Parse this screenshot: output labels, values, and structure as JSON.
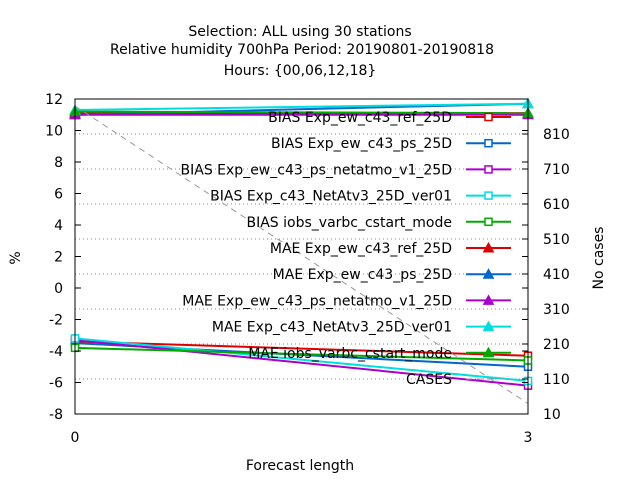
{
  "chart_data": {
    "type": "line",
    "title_lines": [
      "Selection: ALL using    30 stations",
      "Relative humidity 700hPa   Period: 20190801-20190818",
      "Hours: {00,06,12,18}"
    ],
    "xlabel": "Forecast length",
    "ylabel": "%",
    "y2label": "No cases",
    "x": [
      0,
      3
    ],
    "xlim": [
      0,
      3
    ],
    "xticks": [
      "0",
      "3"
    ],
    "ylim": [
      -8,
      12
    ],
    "yticks": [
      "-8",
      "-6",
      "-4",
      "-2",
      "0",
      "2",
      "4",
      "6",
      "8",
      "10",
      "12"
    ],
    "y2lim": [
      10,
      910
    ],
    "y2ticks": [
      "10",
      "110",
      "210",
      "310",
      "410",
      "510",
      "610",
      "710",
      "810"
    ],
    "grid": "dotted-horizontal-on-y2-ticks",
    "legend_position": "top-right",
    "series": [
      {
        "name": "BIAS Exp_ew_c43_ref_25D",
        "values": [
          -3.4,
          -4.3
        ],
        "color": "#dd0000",
        "marker": "square-open",
        "axis": "y"
      },
      {
        "name": "BIAS Exp_ew_c43_ps_25D",
        "values": [
          -3.5,
          -5.0
        ],
        "color": "#0066cc",
        "marker": "square-open",
        "axis": "y"
      },
      {
        "name": "BIAS Exp_ew_c43_ps_netatmo_v1_25D",
        "values": [
          -3.3,
          -6.2
        ],
        "color": "#aa00cc",
        "marker": "square-open",
        "axis": "y"
      },
      {
        "name": "BIAS Exp_c43_NetAtv3_25D_ver01",
        "values": [
          -3.2,
          -5.9
        ],
        "color": "#00dddd",
        "marker": "square-open",
        "axis": "y"
      },
      {
        "name": "BIAS iobs_varbc_cstart_mode",
        "values": [
          -3.8,
          -4.6
        ],
        "color": "#00aa00",
        "marker": "square-open",
        "axis": "y"
      },
      {
        "name": "MAE Exp_ew_c43_ref_25D",
        "values": [
          11.1,
          11.1
        ],
        "color": "#dd0000",
        "marker": "triangle-filled",
        "axis": "y"
      },
      {
        "name": "MAE Exp_ew_c43_ps_25D",
        "values": [
          11.0,
          11.7
        ],
        "color": "#0066cc",
        "marker": "triangle-filled",
        "axis": "y"
      },
      {
        "name": "MAE Exp_ew_c43_ps_netatmo_v1_25D",
        "values": [
          11.0,
          11.0
        ],
        "color": "#aa00cc",
        "marker": "triangle-filled",
        "axis": "y"
      },
      {
        "name": "MAE Exp_c43_NetAtv3_25D_ver01",
        "values": [
          11.3,
          11.7
        ],
        "color": "#00dddd",
        "marker": "triangle-filled",
        "axis": "y"
      },
      {
        "name": "MAE iobs_varbc_cstart_mode",
        "values": [
          11.2,
          11.1
        ],
        "color": "#00aa00",
        "marker": "triangle-filled",
        "axis": "y"
      },
      {
        "name": "CASES",
        "values": [
          890,
          40
        ],
        "color": "#999999",
        "marker": "none",
        "dash": "dashed",
        "axis": "y2"
      }
    ]
  }
}
